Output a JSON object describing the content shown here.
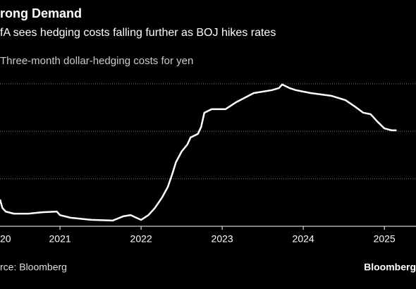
{
  "chart_data": {
    "type": "line",
    "title": "rong Demand",
    "subtitle": "fA sees hedging costs falling further as BOJ hikes rates",
    "source": "rce: Bloomberg",
    "brand": "Bloomberg",
    "series": [
      {
        "name": "Three-month dollar-hedging costs for yen",
        "color": "#ffffff",
        "x": [
          2020.26,
          2020.29,
          2020.33,
          2020.43,
          2020.61,
          2020.78,
          2020.96,
          2021.0,
          2021.13,
          2021.39,
          2021.65,
          2021.78,
          2021.87,
          2021.96,
          2022.0,
          2022.09,
          2022.17,
          2022.26,
          2022.33,
          2022.39,
          2022.43,
          2022.5,
          2022.57,
          2022.61,
          2022.7,
          2022.74,
          2022.78,
          2022.87,
          2023.04,
          2023.17,
          2023.39,
          2023.61,
          2023.7,
          2023.74,
          2023.83,
          2023.91,
          2024.09,
          2024.35,
          2024.52,
          2024.65,
          2024.74,
          2024.83,
          2024.91,
          2025.0,
          2025.09,
          2025.15
        ],
        "values": [
          1.13,
          0.77,
          0.62,
          0.53,
          0.53,
          0.59,
          0.62,
          0.47,
          0.36,
          0.27,
          0.24,
          0.42,
          0.47,
          0.33,
          0.27,
          0.47,
          0.77,
          1.22,
          1.66,
          2.26,
          2.7,
          3.15,
          3.44,
          3.74,
          3.89,
          4.18,
          4.78,
          4.93,
          4.93,
          5.22,
          5.61,
          5.73,
          5.82,
          5.97,
          5.82,
          5.73,
          5.61,
          5.49,
          5.31,
          5.01,
          4.78,
          4.72,
          4.42,
          4.12,
          4.04,
          4.04
        ]
      }
    ],
    "xlim": [
      2020.26,
      2025.39
    ],
    "xticks": [
      {
        "value": 2020,
        "label": "20"
      },
      2021,
      2022,
      2023,
      2024,
      2025
    ],
    "ylim": [
      0,
      6.5
    ],
    "yticks": [
      2,
      4,
      6
    ],
    "grid": true
  }
}
